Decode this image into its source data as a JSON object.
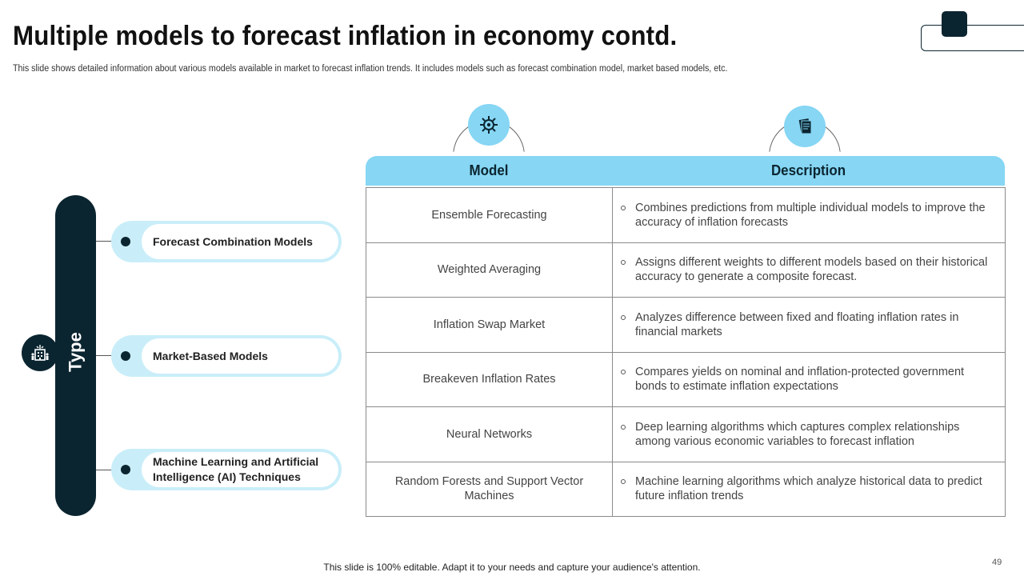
{
  "title": "Multiple models to forecast inflation in economy contd.",
  "subtitle": "This slide shows detailed information about various models available in market to forecast inflation trends. It includes models such as forecast combination model, market based models, etc.",
  "type_panel": {
    "label": "Type",
    "icon": "building-people-icon",
    "items": [
      {
        "label": "Forecast Combination Models"
      },
      {
        "label": "Market-Based Models"
      },
      {
        "label": "Machine Learning and Artificial Intelligence (AI) Techniques"
      }
    ]
  },
  "table": {
    "headers": {
      "model": "Model",
      "description": "Description",
      "model_icon": "gear-network-icon",
      "description_icon": "documents-icon"
    },
    "rows": [
      {
        "model": "Ensemble Forecasting",
        "description": "Combines predictions from multiple individual models to improve the accuracy of inflation forecasts"
      },
      {
        "model": "Weighted Averaging",
        "description": "Assigns different weights to different models based on their historical accuracy to generate a composite forecast."
      },
      {
        "model": "Inflation Swap Market",
        "description": "Analyzes difference between fixed and floating inflation rates in financial markets"
      },
      {
        "model": "Breakeven Inflation Rates",
        "description": "Compares yields on nominal and inflation-protected government bonds to estimate inflation expectations"
      },
      {
        "model": "Neural Networks",
        "description": "Deep learning algorithms which captures complex relationships among various economic variables to forecast inflation"
      },
      {
        "model": "Random Forests and Support Vector Machines",
        "description": "Machine learning algorithms which analyze historical data to predict future inflation trends"
      }
    ]
  },
  "footer": "This slide is 100% editable. Adapt it to your needs and capture your audience's attention.",
  "page_number": "49",
  "colors": {
    "dark": "#0b2530",
    "accent": "#86d6f4",
    "accent_light": "#c9eef9"
  }
}
